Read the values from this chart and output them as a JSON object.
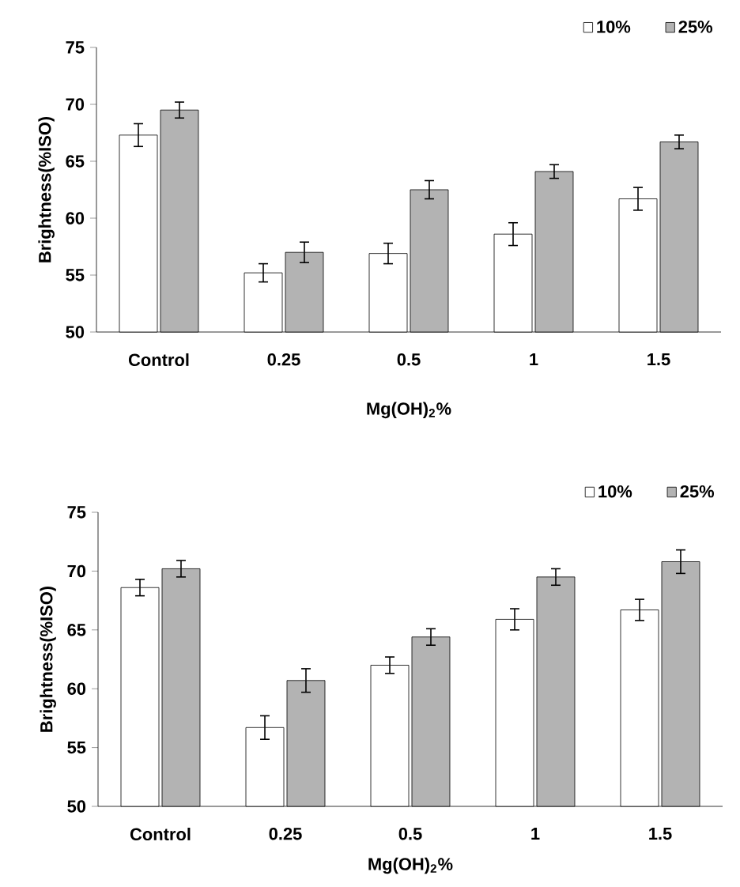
{
  "chart_data": [
    {
      "type": "bar",
      "categories": [
        "Control",
        "0.25",
        "0.5",
        "1",
        "1.5"
      ],
      "xlabel": "Mg(OH)$_{2}$%",
      "ylabel": "Brightness(%ISO)",
      "ylim": [
        50,
        75
      ],
      "yticks": [
        50,
        55,
        60,
        65,
        70,
        75
      ],
      "legend": "top right",
      "series": [
        {
          "name": "10%",
          "color": "#ffffff",
          "values": [
            67.3,
            55.2,
            56.9,
            58.6,
            61.7
          ],
          "errors": [
            1.0,
            0.8,
            0.9,
            1.0,
            1.0
          ]
        },
        {
          "name": "25%",
          "color": "#b3b3b3",
          "values": [
            69.5,
            57.0,
            62.5,
            64.1,
            66.7
          ],
          "errors": [
            0.7,
            0.9,
            0.8,
            0.6,
            0.6
          ]
        }
      ]
    },
    {
      "type": "bar",
      "categories": [
        "Control",
        "0.25",
        "0.5",
        "1",
        "1.5"
      ],
      "xlabel": "Mg(OH)$_{2}$%",
      "ylabel": "Brightness(%ISO)",
      "ylim": [
        50,
        75
      ],
      "yticks": [
        50,
        55,
        60,
        65,
        70,
        75
      ],
      "legend": "top right",
      "series": [
        {
          "name": "10%",
          "color": "#ffffff",
          "values": [
            68.6,
            56.7,
            62.0,
            65.9,
            66.7
          ],
          "errors": [
            0.7,
            1.0,
            0.7,
            0.9,
            0.9
          ]
        },
        {
          "name": "25%",
          "color": "#b3b3b3",
          "values": [
            70.2,
            60.7,
            64.4,
            69.5,
            70.8
          ],
          "errors": [
            0.7,
            1.0,
            0.7,
            0.7,
            1.0
          ]
        }
      ]
    }
  ]
}
